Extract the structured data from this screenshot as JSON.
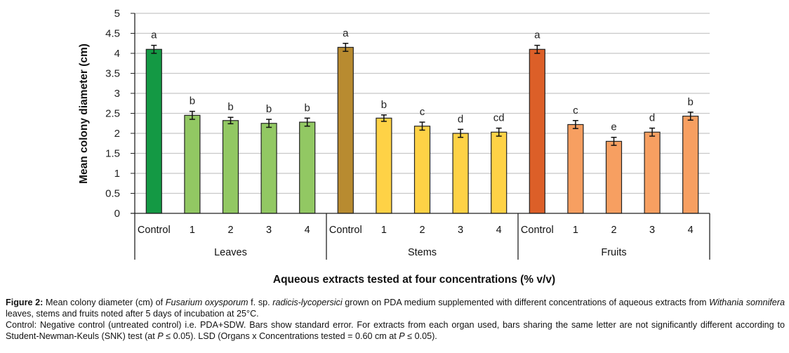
{
  "chart_data": {
    "type": "bar",
    "title": "",
    "xlabel": "Aqueous extracts tested at four concentrations (% v/v)",
    "ylabel": "Mean colony diameter (cm)",
    "ylim": [
      0,
      5
    ],
    "yticks": [
      "0",
      "0.5",
      "1",
      "1.5",
      "2",
      "2.5",
      "3",
      "3.5",
      "4",
      "4.5",
      "5"
    ],
    "grid": true,
    "groups": [
      {
        "name": "Leaves",
        "categories": [
          "Control",
          "1",
          "2",
          "3",
          "4"
        ],
        "values": [
          4.1,
          2.45,
          2.32,
          2.25,
          2.28
        ],
        "errors": [
          0.1,
          0.1,
          0.08,
          0.1,
          0.1
        ],
        "letters": [
          "a",
          "b",
          "b",
          "b",
          "b"
        ],
        "colors": [
          "#149944",
          "#92c863",
          "#92c863",
          "#92c863",
          "#92c863"
        ]
      },
      {
        "name": "Stems",
        "categories": [
          "Control",
          "1",
          "2",
          "3",
          "4"
        ],
        "values": [
          4.15,
          2.38,
          2.18,
          2.0,
          2.03
        ],
        "errors": [
          0.1,
          0.08,
          0.1,
          0.1,
          0.1
        ],
        "letters": [
          "a",
          "b",
          "c",
          "d",
          "cd"
        ],
        "colors": [
          "#b88b30",
          "#fed246",
          "#fed246",
          "#fed246",
          "#fed246"
        ]
      },
      {
        "name": "Fruits",
        "categories": [
          "Control",
          "1",
          "2",
          "3",
          "4"
        ],
        "values": [
          4.1,
          2.22,
          1.8,
          2.03,
          2.43
        ],
        "errors": [
          0.1,
          0.1,
          0.1,
          0.1,
          0.1
        ],
        "letters": [
          "a",
          "c",
          "e",
          "d",
          "b"
        ],
        "colors": [
          "#dc5f28",
          "#f79f61",
          "#f79f61",
          "#f79f61",
          "#f79f61"
        ]
      }
    ]
  },
  "caption": {
    "label": "Figure 2:",
    "line1_a": " Mean colony diameter (cm) of ",
    "line1_italic1": "Fusarium oxysporum",
    "line1_b": " f. sp. ",
    "line1_italic2": "radicis-lycopersici",
    "line1_c": " grown on PDA medium supplemented with different concentrations of aqueous extracts from ",
    "line1_italic3": "Withania somnifera",
    "line1_d": " leaves, stems and fruits noted after 5 days of incubation at 25°C.",
    "line2_a": "Control: Negative control (untreated control) i.e. PDA+SDW. Bars show standard error. For extracts from each organ used, bars sharing the same letter are not significantly different according to Student-Newman-Keuls (SNK) test (at ",
    "p1": "P",
    "line2_b": " ≤ 0.05). LSD (Organs x Concentrations tested = 0.60 cm at ",
    "p2": "P",
    "line2_c": " ≤ 0.05)."
  }
}
